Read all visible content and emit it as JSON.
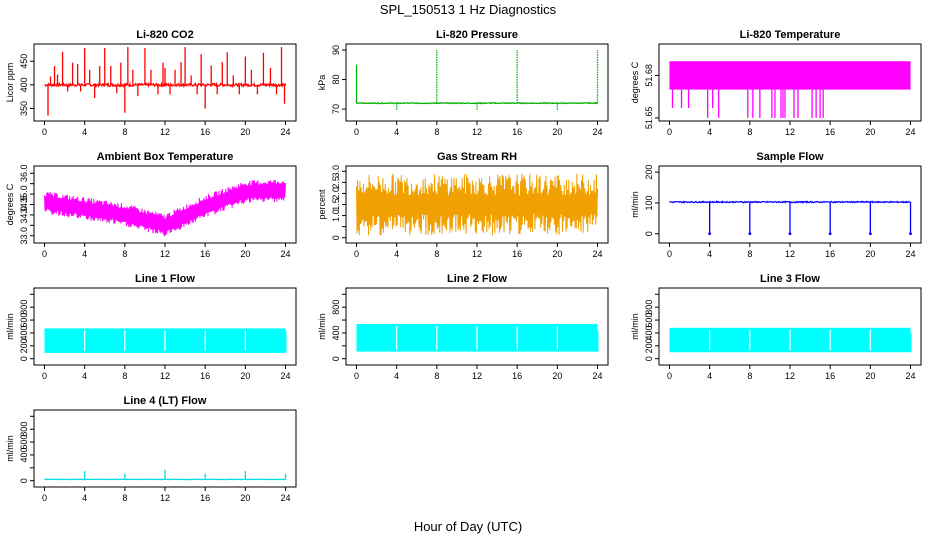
{
  "figure": {
    "title": "SPL_150513  1 Hz Diagnostics",
    "xlabel": "Hour of Day (UTC)"
  },
  "chart_data": [
    {
      "id": "co2",
      "type": "line",
      "title": "Li-820 CO2",
      "ylabel": "Licor ppm",
      "color": "#ff0000",
      "x_ticks": [
        0,
        4,
        8,
        12,
        16,
        20,
        24
      ],
      "xlim": [
        0,
        24
      ],
      "y_ticks": [
        350,
        400,
        450
      ],
      "y_tick_labels": [
        "350",
        "400",
        "450"
      ],
      "ylim": [
        330,
        480
      ],
      "signal": {
        "base": 400,
        "noise": 3,
        "spikes": [
          {
            "x": 0.35,
            "y": 335
          },
          {
            "x": 0.6,
            "y": 418
          },
          {
            "x": 1.0,
            "y": 440
          },
          {
            "x": 1.3,
            "y": 422
          },
          {
            "x": 1.8,
            "y": 470
          },
          {
            "x": 2.3,
            "y": 386
          },
          {
            "x": 2.8,
            "y": 447
          },
          {
            "x": 3.3,
            "y": 444
          },
          {
            "x": 3.6,
            "y": 386
          },
          {
            "x": 4.0,
            "y": 478
          },
          {
            "x": 4.5,
            "y": 432
          },
          {
            "x": 5.0,
            "y": 372
          },
          {
            "x": 5.5,
            "y": 440
          },
          {
            "x": 6.0,
            "y": 478
          },
          {
            "x": 6.6,
            "y": 440
          },
          {
            "x": 7.2,
            "y": 382
          },
          {
            "x": 7.6,
            "y": 447
          },
          {
            "x": 8.0,
            "y": 341
          },
          {
            "x": 8.3,
            "y": 480
          },
          {
            "x": 8.8,
            "y": 432
          },
          {
            "x": 9.3,
            "y": 376
          },
          {
            "x": 10.0,
            "y": 478
          },
          {
            "x": 10.6,
            "y": 432
          },
          {
            "x": 11.3,
            "y": 380
          },
          {
            "x": 11.8,
            "y": 447
          },
          {
            "x": 12.0,
            "y": 436
          },
          {
            "x": 12.5,
            "y": 380
          },
          {
            "x": 13.0,
            "y": 432
          },
          {
            "x": 13.6,
            "y": 448
          },
          {
            "x": 14.0,
            "y": 480
          },
          {
            "x": 14.6,
            "y": 420
          },
          {
            "x": 15.2,
            "y": 380
          },
          {
            "x": 15.6,
            "y": 465
          },
          {
            "x": 16.0,
            "y": 350
          },
          {
            "x": 16.6,
            "y": 441
          },
          {
            "x": 17.2,
            "y": 380
          },
          {
            "x": 17.7,
            "y": 448
          },
          {
            "x": 18.2,
            "y": 469
          },
          {
            "x": 18.8,
            "y": 420
          },
          {
            "x": 19.4,
            "y": 380
          },
          {
            "x": 20.0,
            "y": 460
          },
          {
            "x": 20.6,
            "y": 432
          },
          {
            "x": 21.2,
            "y": 380
          },
          {
            "x": 21.8,
            "y": 468
          },
          {
            "x": 22.5,
            "y": 436
          },
          {
            "x": 23.1,
            "y": 380
          },
          {
            "x": 23.6,
            "y": 480
          },
          {
            "x": 23.9,
            "y": 360
          }
        ]
      }
    },
    {
      "id": "pressure",
      "type": "line",
      "title": "Li-820 Pressure",
      "ylabel": "kPa",
      "color": "#00b000",
      "x_ticks": [
        0,
        4,
        8,
        12,
        16,
        20,
        24
      ],
      "xlim": [
        0,
        24
      ],
      "y_ticks": [
        70,
        80,
        90
      ],
      "y_tick_labels": [
        "70",
        "80",
        "90"
      ],
      "ylim": [
        67,
        91
      ],
      "signal": {
        "base": 72,
        "noise": 0.15,
        "start_spike": 85,
        "spikes": [
          {
            "x": 4.0,
            "y": 69.5
          },
          {
            "x": 8.0,
            "y": 90
          },
          {
            "x": 12.0,
            "y": 69.5
          },
          {
            "x": 16.0,
            "y": 90
          },
          {
            "x": 20.0,
            "y": 69.5
          },
          {
            "x": 24.0,
            "y": 90
          }
        ]
      }
    },
    {
      "id": "temperature",
      "type": "band",
      "title": "Li-820 Temperature",
      "ylabel": "degrees C",
      "color": "#ff00ff",
      "x_ticks": [
        0,
        4,
        8,
        12,
        16,
        20,
        24
      ],
      "xlim": [
        0,
        24
      ],
      "y_ticks": [
        51.65,
        51.68
      ],
      "y_tick_labels": [
        "51.65",
        "51.68"
      ],
      "ylim": [
        51.65,
        51.7
      ],
      "band": {
        "low": 51.67,
        "high": 51.69
      },
      "drops": [
        {
          "x": 0.3,
          "y": 51.657
        },
        {
          "x": 1.2,
          "y": 51.657
        },
        {
          "x": 1.9,
          "y": 51.657
        },
        {
          "x": 3.8,
          "y": 51.65
        },
        {
          "x": 4.3,
          "y": 51.657
        },
        {
          "x": 4.9,
          "y": 51.65
        },
        {
          "x": 7.8,
          "y": 51.65
        },
        {
          "x": 8.3,
          "y": 51.65
        },
        {
          "x": 9.0,
          "y": 51.65
        },
        {
          "x": 10.2,
          "y": 51.65
        },
        {
          "x": 10.5,
          "y": 51.65
        },
        {
          "x": 11.1,
          "y": 51.65
        },
        {
          "x": 11.3,
          "y": 51.65
        },
        {
          "x": 11.5,
          "y": 51.65
        },
        {
          "x": 12.4,
          "y": 51.65
        },
        {
          "x": 12.8,
          "y": 51.65
        },
        {
          "x": 14.2,
          "y": 51.65
        },
        {
          "x": 14.6,
          "y": 51.65
        },
        {
          "x": 15.0,
          "y": 51.65
        },
        {
          "x": 15.3,
          "y": 51.65
        }
      ]
    },
    {
      "id": "ambient",
      "type": "line",
      "title": "Ambient Box Temperature",
      "ylabel": "degrees C",
      "color": "#ff00ff",
      "x_ticks": [
        0,
        4,
        8,
        12,
        16,
        20,
        24
      ],
      "xlim": [
        0,
        24
      ],
      "y_ticks": [
        33.0,
        33.5,
        34.0,
        34.5,
        35.0,
        35.5,
        36.0
      ],
      "y_tick_labels": [
        "33.0",
        "",
        "34.0",
        "34.5",
        "35.0",
        "",
        "36.0"
      ],
      "ylim": [
        32.8,
        36.2
      ],
      "signal": {
        "trend": [
          {
            "x": 0,
            "y": 34.6
          },
          {
            "x": 4,
            "y": 34.3
          },
          {
            "x": 8,
            "y": 34.0
          },
          {
            "x": 12,
            "y": 33.5
          },
          {
            "x": 16,
            "y": 34.4
          },
          {
            "x": 20,
            "y": 35.1
          },
          {
            "x": 24,
            "y": 35.2
          }
        ],
        "amplitude": 0.55
      }
    },
    {
      "id": "rh",
      "type": "line",
      "title": "Gas Stream RH",
      "ylabel": "percent",
      "color": "#f0a000",
      "x_ticks": [
        0,
        4,
        8,
        12,
        16,
        20,
        24
      ],
      "xlim": [
        0,
        24
      ],
      "y_ticks": [
        0,
        0.5,
        1.0,
        1.5,
        2.0,
        2.5,
        3.0
      ],
      "y_tick_labels": [
        "0",
        "",
        "1.0",
        "1.5",
        "2.0",
        "2.5",
        "3.0"
      ],
      "ylim": [
        -0.1,
        3.1
      ],
      "signal": {
        "mid": 1.5,
        "amplitude": 1.4
      }
    },
    {
      "id": "sample_flow",
      "type": "line",
      "title": "Sample Flow",
      "ylabel": "ml/min",
      "color": "#0000ff",
      "x_ticks": [
        0,
        4,
        8,
        12,
        16,
        20,
        24
      ],
      "xlim": [
        0,
        24
      ],
      "y_ticks": [
        0,
        100,
        200
      ],
      "y_tick_labels": [
        "0",
        "100",
        "200"
      ],
      "ylim": [
        -20,
        210
      ],
      "signal": {
        "base": 103,
        "noise": 2,
        "spikes": [
          {
            "x": 4.0,
            "y": 0
          },
          {
            "x": 8.0,
            "y": 0
          },
          {
            "x": 12.0,
            "y": 0
          },
          {
            "x": 16.0,
            "y": 0
          },
          {
            "x": 20.0,
            "y": 0
          },
          {
            "x": 24.0,
            "y": 0
          }
        ]
      }
    },
    {
      "id": "line1",
      "type": "band",
      "title": "Line 1 Flow",
      "ylabel": "ml/min",
      "color": "#00ffff",
      "x_ticks": [
        0,
        4,
        8,
        12,
        16,
        20,
        24
      ],
      "xlim": [
        0,
        24
      ],
      "y_ticks": [
        0,
        200,
        400,
        600,
        800,
        1000
      ],
      "y_tick_labels": [
        "0",
        "200",
        "400",
        "600",
        "800",
        ""
      ],
      "ylim": [
        -50,
        1050
      ],
      "band": {
        "low": 90,
        "high": 470
      },
      "gaps": [
        4,
        8,
        12,
        16,
        20
      ],
      "tail": {
        "x": 23.7,
        "low": 100,
        "high": 430
      }
    },
    {
      "id": "line2",
      "type": "band",
      "title": "Line 2 Flow",
      "ylabel": "ml/min",
      "color": "#00ffff",
      "x_ticks": [
        0,
        4,
        8,
        12,
        16,
        20,
        24
      ],
      "xlim": [
        0,
        24
      ],
      "y_ticks": [
        0,
        200,
        400,
        600,
        800,
        1000
      ],
      "y_tick_labels": [
        "0",
        "",
        "400",
        "",
        "800",
        ""
      ],
      "ylim": [
        -50,
        1050
      ],
      "band": {
        "low": 110,
        "high": 540
      },
      "gaps": [
        4,
        8,
        12,
        16,
        20
      ],
      "tail": {
        "x": 23.7,
        "low": 110,
        "high": 430
      }
    },
    {
      "id": "line3",
      "type": "band",
      "title": "Line 3 Flow",
      "ylabel": "ml/min",
      "color": "#00ffff",
      "x_ticks": [
        0,
        4,
        8,
        12,
        16,
        20,
        24
      ],
      "xlim": [
        0,
        24
      ],
      "y_ticks": [
        0,
        200,
        400,
        600,
        800,
        1000
      ],
      "y_tick_labels": [
        "0",
        "200",
        "400",
        "600",
        "800",
        ""
      ],
      "ylim": [
        -50,
        1050
      ],
      "band": {
        "low": 100,
        "high": 480
      },
      "gaps": [
        4,
        8,
        12,
        16,
        20
      ],
      "tail": {
        "x": 23.7,
        "low": 110,
        "high": 400
      }
    },
    {
      "id": "line4",
      "type": "line",
      "title": "Line 4 (LT) Flow",
      "ylabel": "ml/min",
      "color": "#00dddd",
      "x_ticks": [
        0,
        4,
        8,
        12,
        16,
        20,
        24
      ],
      "xlim": [
        0,
        24
      ],
      "y_ticks": [
        0,
        200,
        400,
        600,
        800,
        1000
      ],
      "y_tick_labels": [
        "0",
        "",
        "400",
        "600",
        "800",
        ""
      ],
      "ylim": [
        -50,
        1050
      ],
      "signal": {
        "base": 20,
        "noise": 3,
        "spikes": [
          {
            "x": 4.0,
            "y": 150
          },
          {
            "x": 8.0,
            "y": 110
          },
          {
            "x": 12.0,
            "y": 170
          },
          {
            "x": 16.0,
            "y": 110
          },
          {
            "x": 20.0,
            "y": 150
          },
          {
            "x": 24.0,
            "y": 110
          }
        ]
      }
    }
  ]
}
